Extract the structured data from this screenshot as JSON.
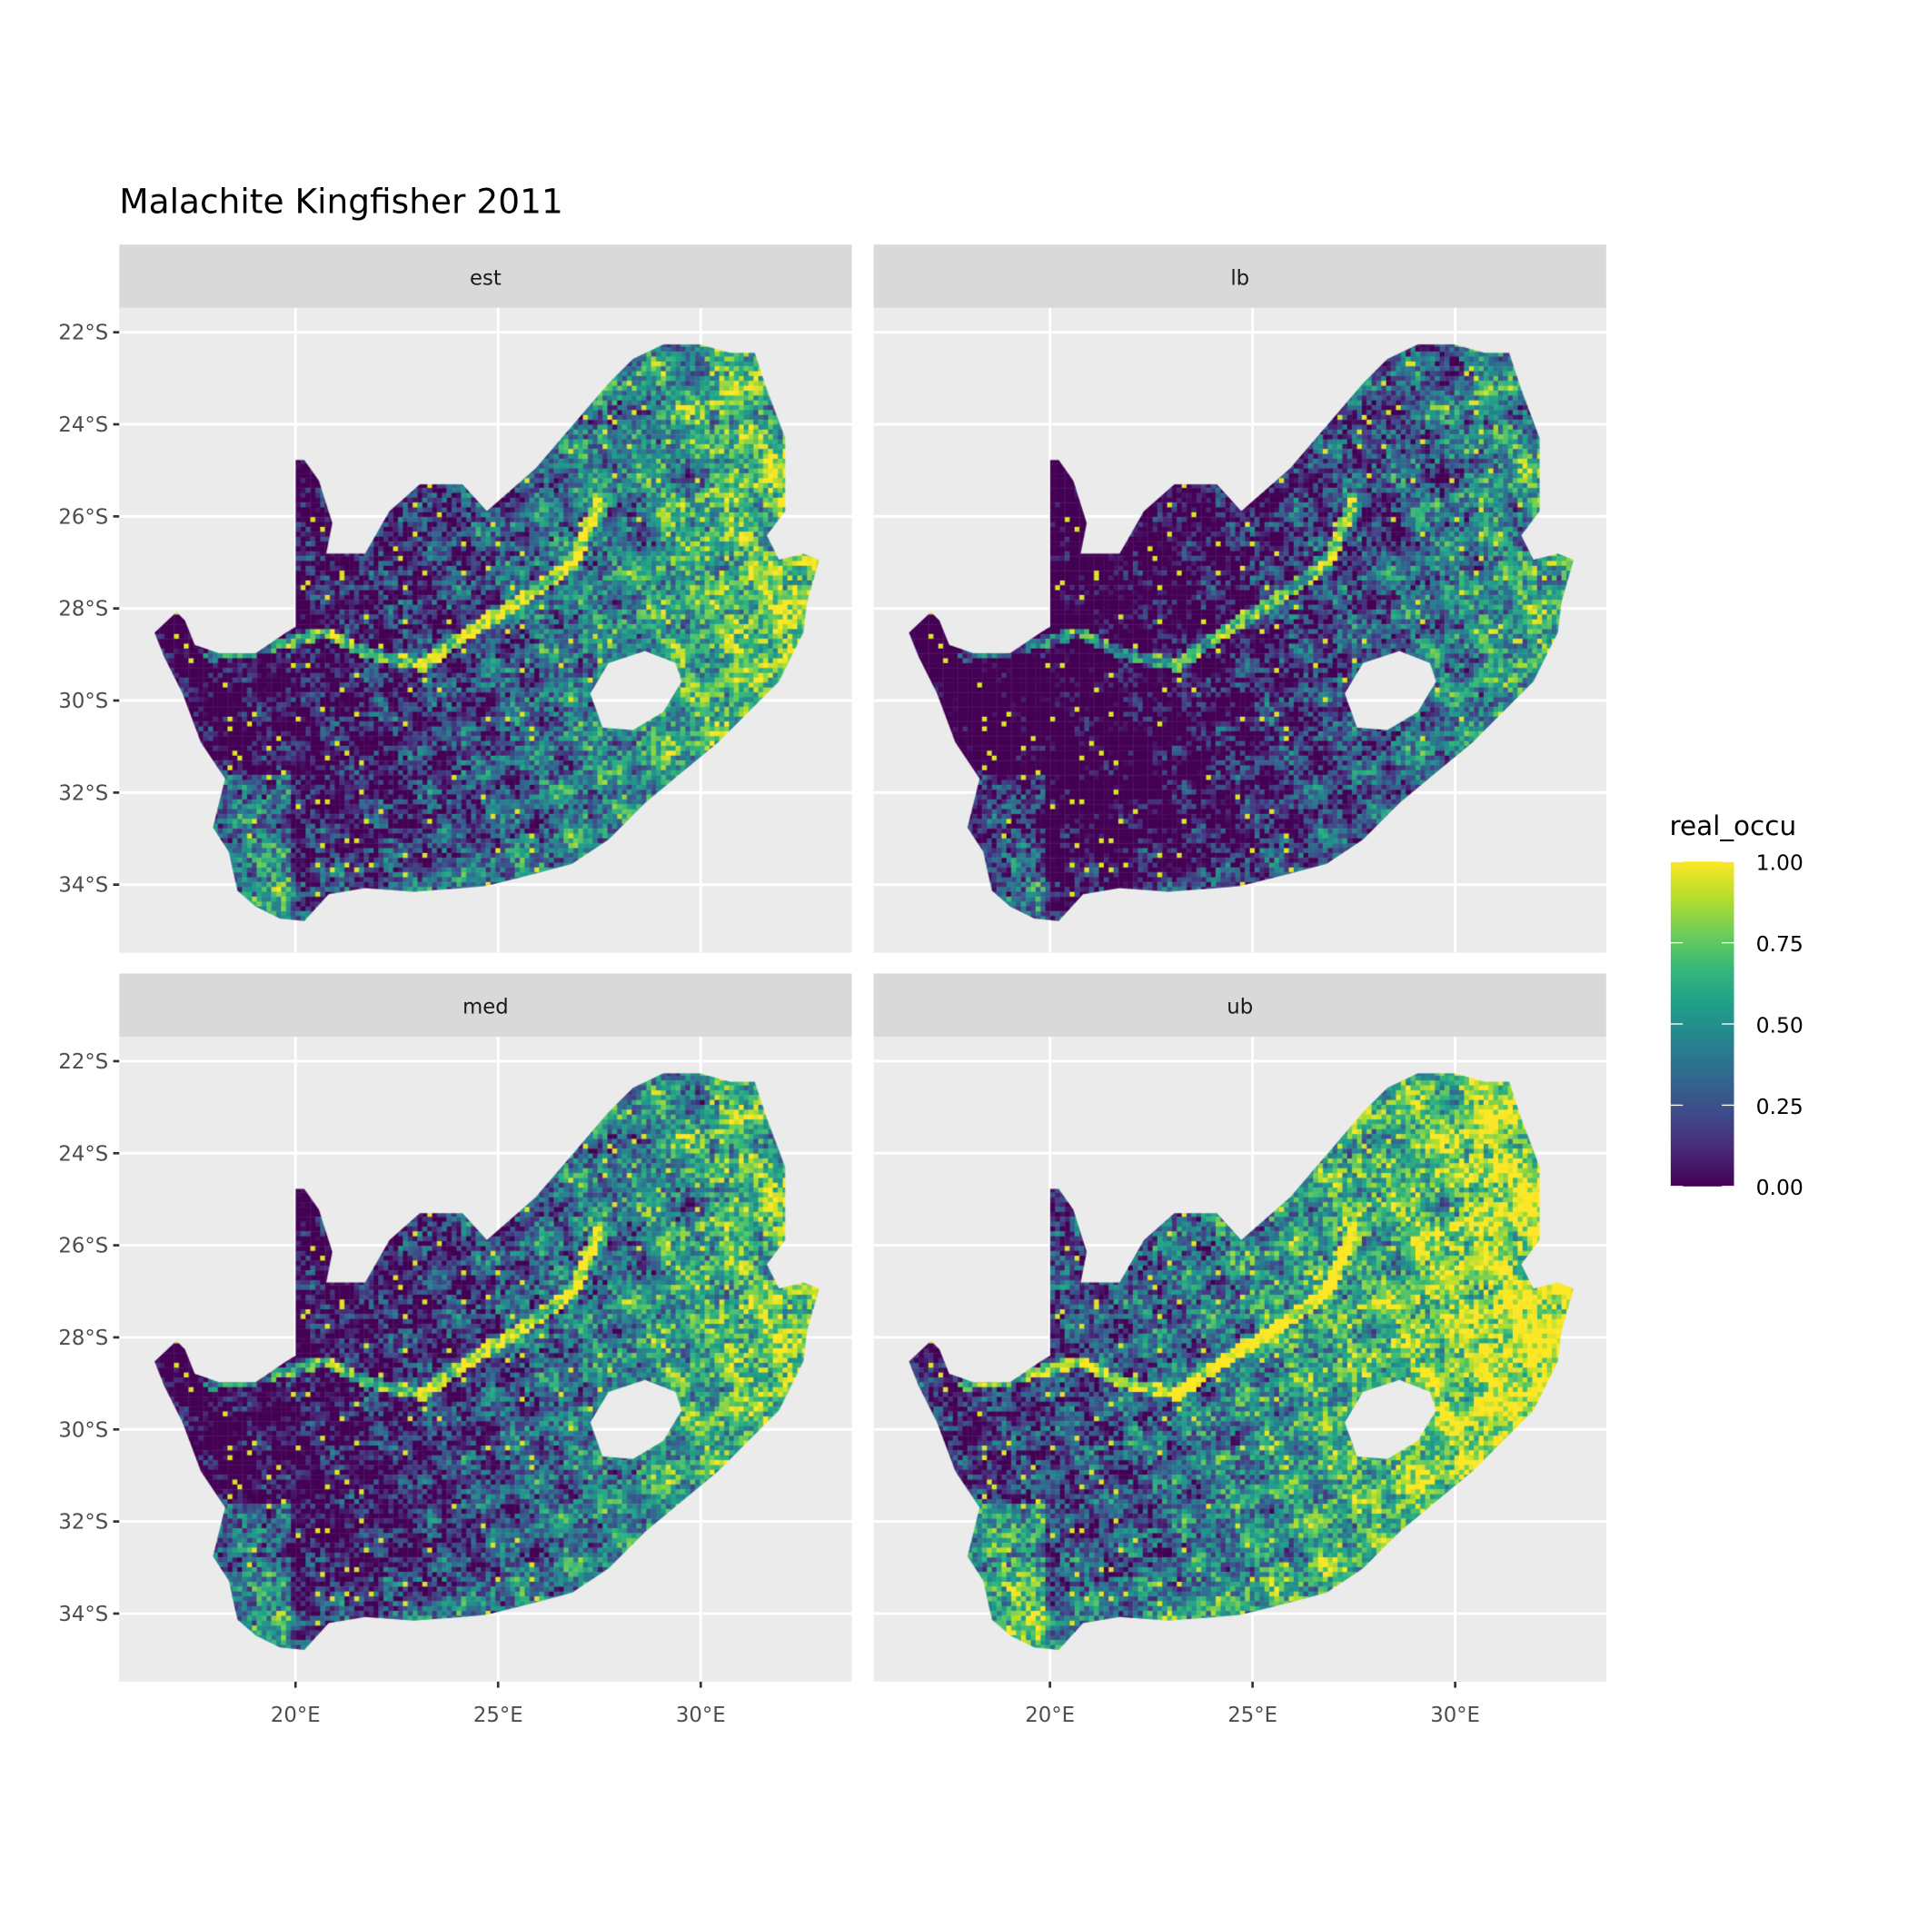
{
  "chart_data": {
    "type": "heatmap",
    "title": "Malachite Kingfisher 2011",
    "facets": [
      "est",
      "lb",
      "med",
      "ub"
    ],
    "x_ticks": [
      "20°E",
      "25°E",
      "30°E"
    ],
    "x_tick_values": [
      20,
      25,
      30
    ],
    "y_ticks": [
      "22°S",
      "24°S",
      "26°S",
      "28°S",
      "30°S",
      "32°S",
      "34°S"
    ],
    "y_tick_values": [
      -22,
      -24,
      -26,
      -28,
      -30,
      -32,
      -34
    ],
    "xlim": [
      15.65,
      33.7
    ],
    "ylim": [
      -35.0,
      -21.47
    ],
    "grid": true,
    "legend": {
      "title": "real_occu",
      "placement": "right",
      "scale": "viridis",
      "range": [
        0,
        1
      ],
      "labels": [
        "1.00",
        "0.75",
        "0.50",
        "0.25",
        "0.00"
      ],
      "label_values": [
        1.0,
        0.75,
        0.5,
        0.25,
        0.0
      ],
      "colors": [
        "#440154",
        "#482878",
        "#3E4A89",
        "#31688E",
        "#26828E",
        "#1F9E89",
        "#35B779",
        "#6DCD59",
        "#B4DE2C",
        "#FDE725"
      ]
    }
  },
  "colors": {
    "panel_bg": "#EBEBEB",
    "strip_bg": "#D9D9D9",
    "grid": "#FFFFFF",
    "axis_text": "#4D4D4D"
  }
}
